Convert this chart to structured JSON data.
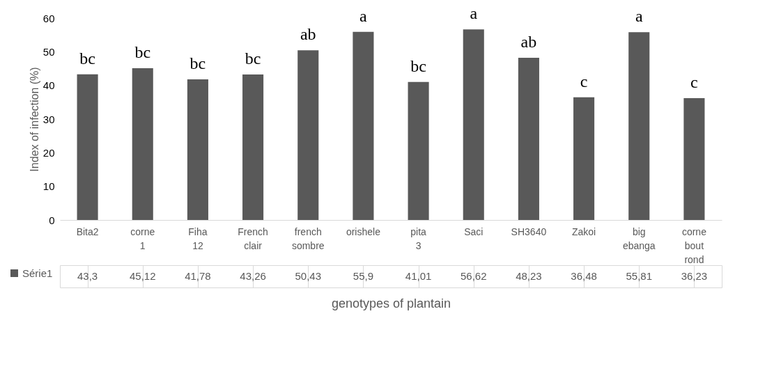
{
  "chart_data": {
    "type": "bar",
    "xlabel": "genotypes of plantain",
    "ylabel": "Index of infection (%)",
    "categories": [
      "Bita2",
      "corne 1",
      "Fiha 12",
      "French clair",
      "french sombre",
      "orishele",
      "pita 3",
      "Saci",
      "SH3640",
      "Zakoi",
      "big ebanga",
      "corne bout rond"
    ],
    "series": [
      {
        "name": "Série1",
        "color": "#595959",
        "values": [
          43.3,
          45.12,
          41.78,
          43.26,
          50.43,
          55.9,
          41.01,
          56.62,
          48.23,
          36.48,
          55.81,
          36.23
        ],
        "value_labels": [
          "43,3",
          "45,12",
          "41,78",
          "43,26",
          "50,43",
          "55,9",
          "41,01",
          "56,62",
          "48,23",
          "36,48",
          "55,81",
          "36,23"
        ]
      }
    ],
    "ylim": [
      0,
      60
    ],
    "yticks": [
      0,
      10,
      20,
      30,
      40,
      50,
      60
    ],
    "grid": false,
    "legend": "bottom left",
    "annotations": [
      {
        "text": "bc",
        "x": "Bita2",
        "y": 43.3
      },
      {
        "text": "bc",
        "x": "corne 1",
        "y": 45.12
      },
      {
        "text": "bc",
        "x": "Fiha 12",
        "y": 41.78
      },
      {
        "text": "bc",
        "x": "French clair",
        "y": 43.26
      },
      {
        "text": "ab",
        "x": "french sombre",
        "y": 50.43
      },
      {
        "text": "a",
        "x": "orishele",
        "y": 55.9
      },
      {
        "text": "bc",
        "x": "pita 3",
        "y": 41.01
      },
      {
        "text": "a",
        "x": "Saci",
        "y": 56.62
      },
      {
        "text": "ab",
        "x": "SH3640",
        "y": 48.23
      },
      {
        "text": "c",
        "x": "Zakoi",
        "y": 36.48
      },
      {
        "text": "a",
        "x": "big ebanga",
        "y": 55.81
      },
      {
        "text": "c",
        "x": "corne bout rond",
        "y": 36.23
      }
    ]
  }
}
